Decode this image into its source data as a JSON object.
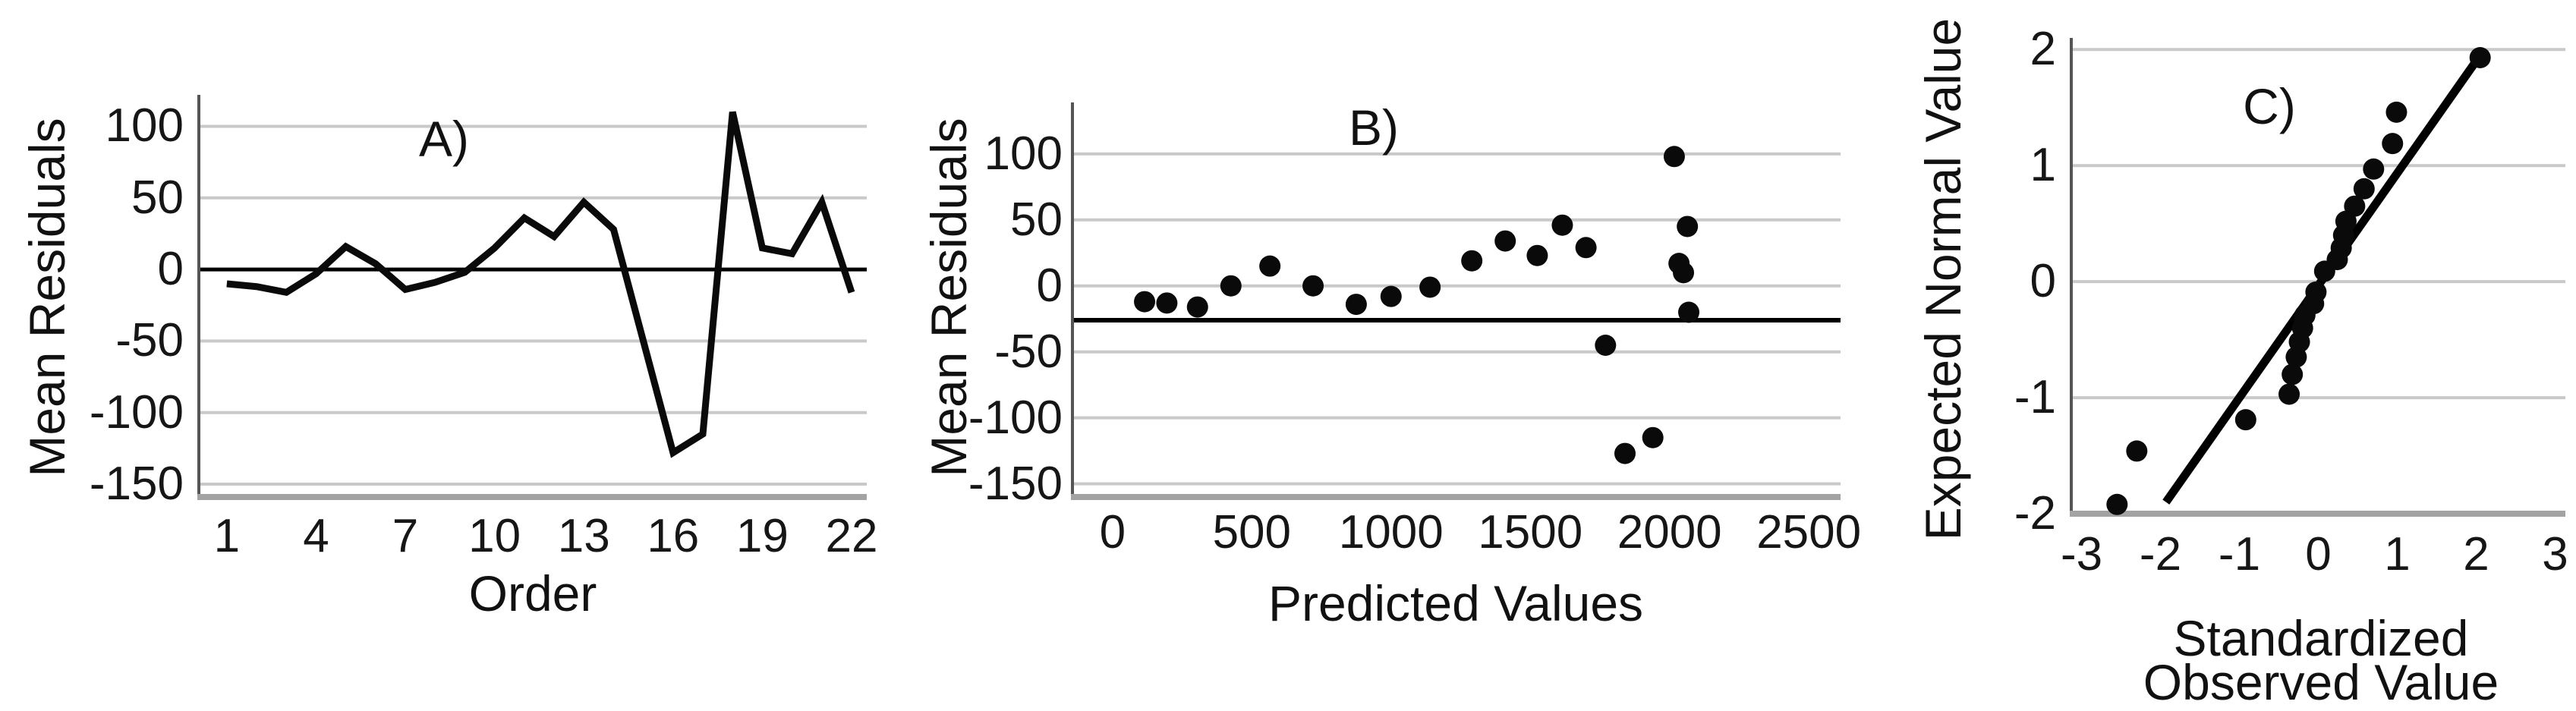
{
  "figure": {
    "background": "#ffffff",
    "text_color": "#111111",
    "grid_color": "#c9c9c9",
    "bottom_axis_color": "#a3a3a3",
    "spine_color": "#555555",
    "series_color": "#0a0a0a"
  },
  "chart_data": [
    {
      "id": "A",
      "type": "line",
      "title": "A)",
      "xlabel": "Order",
      "ylabel": "Mean Residuals",
      "xticks": [
        1,
        4,
        7,
        10,
        13,
        16,
        19,
        22
      ],
      "yticks": [
        100,
        50,
        0,
        -50,
        -100,
        -150
      ],
      "xlim": [
        0.06,
        22.51
      ],
      "ylim": [
        -159,
        122
      ],
      "grid": "horizontal",
      "legend": "none",
      "zero_line_y": 0,
      "x": [
        1,
        2,
        3,
        4,
        5,
        6,
        7,
        8,
        9,
        10,
        11,
        12,
        13,
        14,
        15,
        16,
        17,
        18,
        19,
        20,
        21,
        22
      ],
      "y": [
        -10,
        -12,
        -16,
        -3,
        16,
        4,
        -14,
        -9,
        -2,
        15,
        36,
        23,
        47,
        28,
        -50,
        -128,
        -115,
        110,
        15,
        11,
        47,
        -16
      ]
    },
    {
      "id": "B",
      "type": "scatter",
      "title": "B)",
      "xlabel": "Predicted Values",
      "ylabel": "Mean Residuals",
      "xticks": [
        0,
        500,
        1000,
        1500,
        2000,
        2500
      ],
      "yticks": [
        100,
        50,
        0,
        -50,
        -100,
        -150
      ],
      "xlim": [
        -144,
        2614
      ],
      "ylim": [
        -160,
        139
      ],
      "grid": "horizontal",
      "legend": "none",
      "reference_line_y": -26,
      "points": [
        [
          115,
          -12
        ],
        [
          195,
          -13
        ],
        [
          305,
          -16
        ],
        [
          425,
          0
        ],
        [
          565,
          15
        ],
        [
          720,
          0
        ],
        [
          875,
          -14
        ],
        [
          1000,
          -8
        ],
        [
          1140,
          -1
        ],
        [
          1290,
          19
        ],
        [
          1410,
          34
        ],
        [
          1525,
          23
        ],
        [
          1615,
          46
        ],
        [
          1700,
          29
        ],
        [
          1770,
          -45
        ],
        [
          1840,
          -127
        ],
        [
          1940,
          -115
        ],
        [
          2017,
          98
        ],
        [
          2034,
          17
        ],
        [
          2050,
          10
        ],
        [
          2064,
          45
        ],
        [
          2069,
          -20
        ]
      ]
    },
    {
      "id": "C",
      "type": "scatter",
      "title": "C)",
      "xlabel_lines": [
        "Standardized",
        "Observed Value"
      ],
      "ylabel": "Expected Normal Value",
      "xticks": [
        -3,
        -2,
        -1,
        0,
        1,
        2,
        3
      ],
      "yticks": [
        2,
        1,
        0,
        -1,
        -2
      ],
      "xlim": [
        -3.13,
        3.13
      ],
      "ylim": [
        -2,
        2.1
      ],
      "grid": "horizontal",
      "legend": "none",
      "fit_line": {
        "x1": -1.93,
        "y1": -1.9,
        "x2": 2.05,
        "y2": 1.95
      },
      "points": [
        [
          -2.55,
          -1.92
        ],
        [
          -2.3,
          -1.46
        ],
        [
          -0.92,
          -1.19
        ],
        [
          -0.37,
          -0.97
        ],
        [
          -0.33,
          -0.8
        ],
        [
          -0.28,
          -0.65
        ],
        [
          -0.24,
          -0.52
        ],
        [
          -0.2,
          -0.4
        ],
        [
          -0.17,
          -0.29
        ],
        [
          -0.06,
          -0.19
        ],
        [
          -0.03,
          -0.09
        ],
        [
          0.08,
          0.09
        ],
        [
          0.24,
          0.19
        ],
        [
          0.29,
          0.29
        ],
        [
          0.32,
          0.4
        ],
        [
          0.35,
          0.52
        ],
        [
          0.46,
          0.65
        ],
        [
          0.58,
          0.8
        ],
        [
          0.7,
          0.97
        ],
        [
          0.94,
          1.19
        ],
        [
          0.99,
          1.46
        ],
        [
          2.05,
          1.93
        ]
      ]
    }
  ]
}
